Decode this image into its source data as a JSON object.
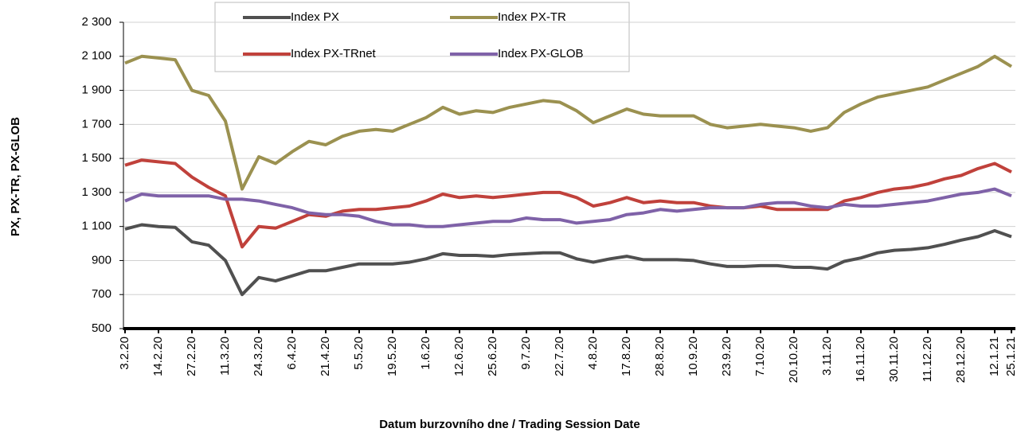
{
  "chart_data": {
    "type": "line",
    "x_label": "Datum burzovního dne / Trading Session Date",
    "y_label": "PX, PX-TR, PX-GLOB",
    "categories": [
      "3.2.20",
      null,
      "14.2.20",
      null,
      "27.2.20",
      null,
      "11.3.20",
      null,
      "24.3.20",
      null,
      "6.4.20",
      null,
      "21.4.20",
      null,
      "5.5.20",
      null,
      "19.5.20",
      null,
      "1.6.20",
      null,
      "12.6.20",
      null,
      "25.6.20",
      null,
      "9.7.20",
      null,
      "22.7.20",
      null,
      "4.8.20",
      null,
      "17.8.20",
      null,
      "28.8.20",
      null,
      "10.9.20",
      null,
      "23.9.20",
      null,
      "7.10.20",
      null,
      "20.10.20",
      null,
      "3.11.20",
      null,
      "16.11.20",
      null,
      "30.11.20",
      null,
      "11.12.20",
      null,
      "28.12.20",
      null,
      "12.1.21",
      "25.1.21"
    ],
    "series": [
      {
        "name": "Index PX",
        "color": "#505050",
        "values": [
          1085,
          1110,
          1100,
          1095,
          1010,
          990,
          900,
          700,
          800,
          780,
          810,
          840,
          840,
          860,
          880,
          880,
          880,
          890,
          910,
          940,
          930,
          930,
          925,
          935,
          940,
          945,
          945,
          910,
          890,
          910,
          925,
          905,
          905,
          905,
          900,
          880,
          865,
          865,
          870,
          870,
          860,
          860,
          850,
          895,
          915,
          945,
          960,
          965,
          975,
          995,
          1020,
          1040,
          1075,
          1040
        ]
      },
      {
        "name": "Index PX-TR",
        "color": "#9b9150",
        "values": [
          2060,
          2100,
          2090,
          2080,
          1900,
          1870,
          1720,
          1320,
          1510,
          1470,
          1540,
          1600,
          1580,
          1630,
          1660,
          1670,
          1660,
          1700,
          1740,
          1800,
          1760,
          1780,
          1770,
          1800,
          1820,
          1840,
          1830,
          1780,
          1710,
          1750,
          1790,
          1760,
          1750,
          1750,
          1750,
          1700,
          1680,
          1690,
          1700,
          1690,
          1680,
          1660,
          1680,
          1770,
          1820,
          1860,
          1880,
          1900,
          1920,
          1960,
          2000,
          2040,
          2100,
          2040
        ]
      },
      {
        "name": "Index PX-TRnet",
        "color": "#c0413b",
        "values": [
          1460,
          1490,
          1480,
          1470,
          1390,
          1330,
          1280,
          980,
          1100,
          1090,
          1130,
          1170,
          1160,
          1190,
          1200,
          1200,
          1210,
          1220,
          1250,
          1290,
          1270,
          1280,
          1270,
          1280,
          1290,
          1300,
          1300,
          1270,
          1220,
          1240,
          1270,
          1240,
          1250,
          1240,
          1240,
          1220,
          1210,
          1210,
          1220,
          1200,
          1200,
          1200,
          1200,
          1250,
          1270,
          1300,
          1320,
          1330,
          1350,
          1380,
          1400,
          1440,
          1470,
          1420
        ]
      },
      {
        "name": "Index PX-GLOB",
        "color": "#7f62a8",
        "values": [
          1250,
          1290,
          1280,
          1280,
          1280,
          1280,
          1260,
          1260,
          1250,
          1230,
          1210,
          1180,
          1170,
          1170,
          1160,
          1130,
          1110,
          1110,
          1100,
          1100,
          1110,
          1120,
          1130,
          1130,
          1150,
          1140,
          1140,
          1120,
          1130,
          1140,
          1170,
          1180,
          1200,
          1190,
          1200,
          1210,
          1210,
          1210,
          1230,
          1240,
          1240,
          1220,
          1210,
          1230,
          1220,
          1220,
          1230,
          1240,
          1250,
          1270,
          1290,
          1300,
          1320,
          1280
        ]
      }
    ],
    "ylim": [
      500,
      2300
    ],
    "yticks": [
      500,
      700,
      900,
      {
        "value": 1100,
        "label": "1 100"
      },
      {
        "value": 1300,
        "label": "1 300"
      },
      {
        "value": 1500,
        "label": "1 500"
      },
      {
        "value": 1700,
        "label": "1 700"
      },
      {
        "value": 1900,
        "label": "1 900"
      },
      {
        "value": 2100,
        "label": "2 100"
      },
      {
        "value": 2300,
        "label": "2 300"
      }
    ],
    "grid": true
  }
}
